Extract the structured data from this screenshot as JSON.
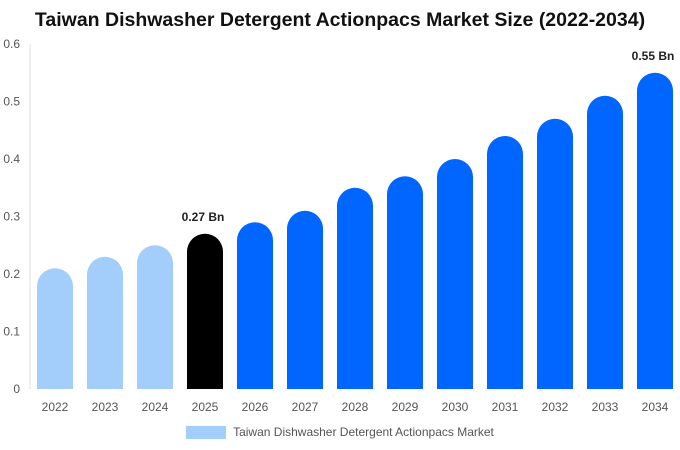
{
  "chart_data": {
    "type": "bar",
    "title": "Taiwan Dishwasher Detergent Actionpacs Market Size (2022-2034)",
    "categories": [
      "2022",
      "2023",
      "2024",
      "2025",
      "2026",
      "2027",
      "2028",
      "2029",
      "2030",
      "2031",
      "2032",
      "2033",
      "2034"
    ],
    "series": [
      {
        "name": "Taiwan Dishwasher Detergent Actionpacs Market",
        "values": [
          0.21,
          0.23,
          0.25,
          0.27,
          0.29,
          0.31,
          0.35,
          0.37,
          0.4,
          0.44,
          0.47,
          0.51,
          0.55
        ]
      }
    ],
    "ylim": [
      0,
      0.6
    ],
    "yticks": [
      "0",
      "0.1",
      "0.2",
      "0.3",
      "0.4",
      "0.5",
      "0.6"
    ],
    "ytick_values": [
      0,
      0.1,
      0.2,
      0.3,
      0.4,
      0.5,
      0.6
    ],
    "annotations": [
      {
        "category": "2025",
        "text": "0.27 Bn"
      },
      {
        "category": "2034",
        "text": "0.55 Bn"
      }
    ],
    "bar_colors": {
      "historical": "#a3cdfb",
      "base_year": "#000000",
      "forecast": "#0066ff"
    },
    "segments": {
      "historical": [
        "2022",
        "2023",
        "2024"
      ],
      "base_year": [
        "2025"
      ],
      "forecast": [
        "2026",
        "2027",
        "2028",
        "2029",
        "2030",
        "2031",
        "2032",
        "2033",
        "2034"
      ]
    },
    "legend_position": "bottom-center",
    "grid": false
  }
}
